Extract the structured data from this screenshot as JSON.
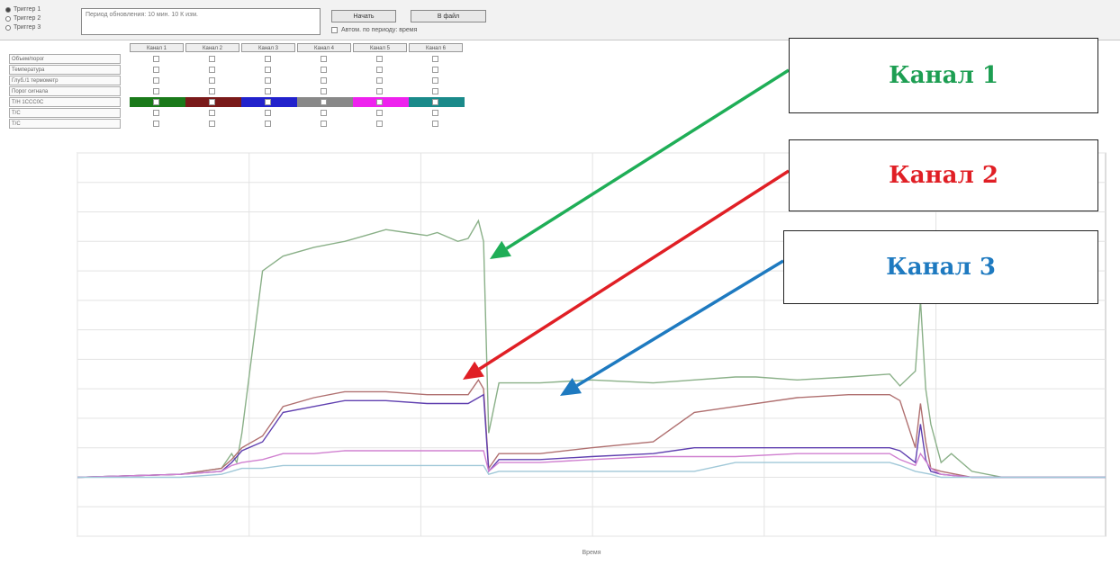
{
  "toolbar": {
    "radio_options": [
      "Триггер 1",
      "Триггер 2",
      "Триггер 3"
    ],
    "selected_radio": 0,
    "note_text": "Период обновления: 10 мин. 10 К изм.",
    "btn_start": "Начать",
    "btn_file": "В файл",
    "checkbox_label": "Автом. по периоду: время"
  },
  "channel_table": {
    "channel_headers": [
      "Канал 1",
      "Канал 2",
      "Канал 3",
      "Канал 4",
      "Канал 5",
      "Канал 6"
    ],
    "row_labels": [
      "Объем/порог",
      "Температура",
      "Глуб./1 термометр",
      "Порог сигнала",
      "Т/Н 1ССС0С",
      "Т/С",
      "Т/С"
    ]
  },
  "colors": {
    "channel_swatches": [
      "#1a7a1a",
      "#7a1a1a",
      "#2222cc",
      "#888888",
      "#ee22ee",
      "#1a8a8a"
    ],
    "callout_green": "#1d9e52",
    "callout_red": "#e01f25",
    "callout_blue": "#1e7ac0",
    "arrow_green": "#1fae57",
    "arrow_red": "#e01f25",
    "arrow_blue": "#1e7ac0"
  },
  "callouts": {
    "channel1": "Канал 1",
    "channel2": "Канал 2",
    "channel3": "Канал 3"
  },
  "chart_data": {
    "type": "line",
    "xlabel": "Время",
    "ylabel": "",
    "xlim": [
      0,
      1000
    ],
    "ylim": [
      -20,
      110
    ],
    "grid": true,
    "series": [
      {
        "name": "Канал 1",
        "color": "#8ab088",
        "x": [
          0,
          100,
          140,
          150,
          155,
          160,
          180,
          200,
          230,
          260,
          280,
          300,
          320,
          340,
          350,
          370,
          380,
          390,
          395,
          400,
          410,
          450,
          500,
          560,
          600,
          640,
          660,
          700,
          750,
          790,
          800,
          815,
          820,
          825,
          830,
          840,
          850,
          870,
          900,
          930,
          960,
          1000
        ],
        "y": [
          0,
          1,
          3,
          8,
          5,
          15,
          70,
          75,
          78,
          80,
          82,
          84,
          83,
          82,
          83,
          80,
          81,
          87,
          80,
          15,
          32,
          32,
          33,
          32,
          33,
          34,
          34,
          33,
          34,
          35,
          31,
          36,
          60,
          30,
          18,
          5,
          8,
          2,
          0,
          0,
          0,
          0
        ]
      },
      {
        "name": "Канал 2",
        "color": "#b07070",
        "x": [
          0,
          100,
          140,
          150,
          160,
          180,
          200,
          230,
          260,
          300,
          340,
          380,
          390,
          395,
          400,
          410,
          450,
          500,
          560,
          600,
          640,
          700,
          750,
          790,
          800,
          815,
          820,
          825,
          830,
          840,
          870,
          900,
          1000
        ],
        "y": [
          0,
          1,
          3,
          6,
          10,
          14,
          24,
          27,
          29,
          29,
          28,
          28,
          33,
          30,
          3,
          8,
          8,
          10,
          12,
          22,
          24,
          27,
          28,
          28,
          26,
          10,
          25,
          12,
          3,
          2,
          0,
          0,
          0
        ]
      },
      {
        "name": "Канал 3",
        "color": "#6040b0",
        "x": [
          0,
          100,
          140,
          150,
          160,
          180,
          200,
          230,
          260,
          300,
          340,
          380,
          390,
          395,
          400,
          410,
          450,
          500,
          560,
          600,
          640,
          700,
          750,
          790,
          800,
          815,
          820,
          825,
          830,
          840,
          870,
          900,
          1000
        ],
        "y": [
          0,
          1,
          2,
          5,
          9,
          12,
          22,
          24,
          26,
          26,
          25,
          25,
          27,
          28,
          2,
          6,
          6,
          7,
          8,
          10,
          10,
          10,
          10,
          10,
          9,
          5,
          18,
          6,
          2,
          1,
          0,
          0,
          0
        ]
      },
      {
        "name": "",
        "color": "#d080d0",
        "x": [
          0,
          100,
          140,
          150,
          160,
          180,
          200,
          230,
          260,
          300,
          340,
          380,
          395,
          400,
          410,
          450,
          500,
          560,
          600,
          640,
          700,
          750,
          790,
          800,
          815,
          820,
          830,
          840,
          870,
          900,
          1000
        ],
        "y": [
          0,
          1,
          2,
          4,
          5,
          6,
          8,
          8,
          9,
          9,
          9,
          9,
          9,
          2,
          5,
          5,
          6,
          7,
          7,
          7,
          8,
          8,
          8,
          6,
          4,
          8,
          3,
          1,
          0,
          0,
          0
        ]
      },
      {
        "name": "",
        "color": "#a0c8d8",
        "x": [
          0,
          100,
          140,
          150,
          160,
          180,
          200,
          230,
          260,
          300,
          340,
          380,
          395,
          400,
          410,
          450,
          500,
          560,
          600,
          640,
          700,
          750,
          790,
          800,
          815,
          830,
          840,
          870,
          900,
          1000
        ],
        "y": [
          0,
          0,
          1,
          2,
          3,
          3,
          4,
          4,
          4,
          4,
          4,
          4,
          4,
          1,
          2,
          2,
          2,
          2,
          2,
          5,
          5,
          5,
          5,
          4,
          2,
          1,
          0,
          0,
          0,
          0
        ]
      }
    ]
  }
}
